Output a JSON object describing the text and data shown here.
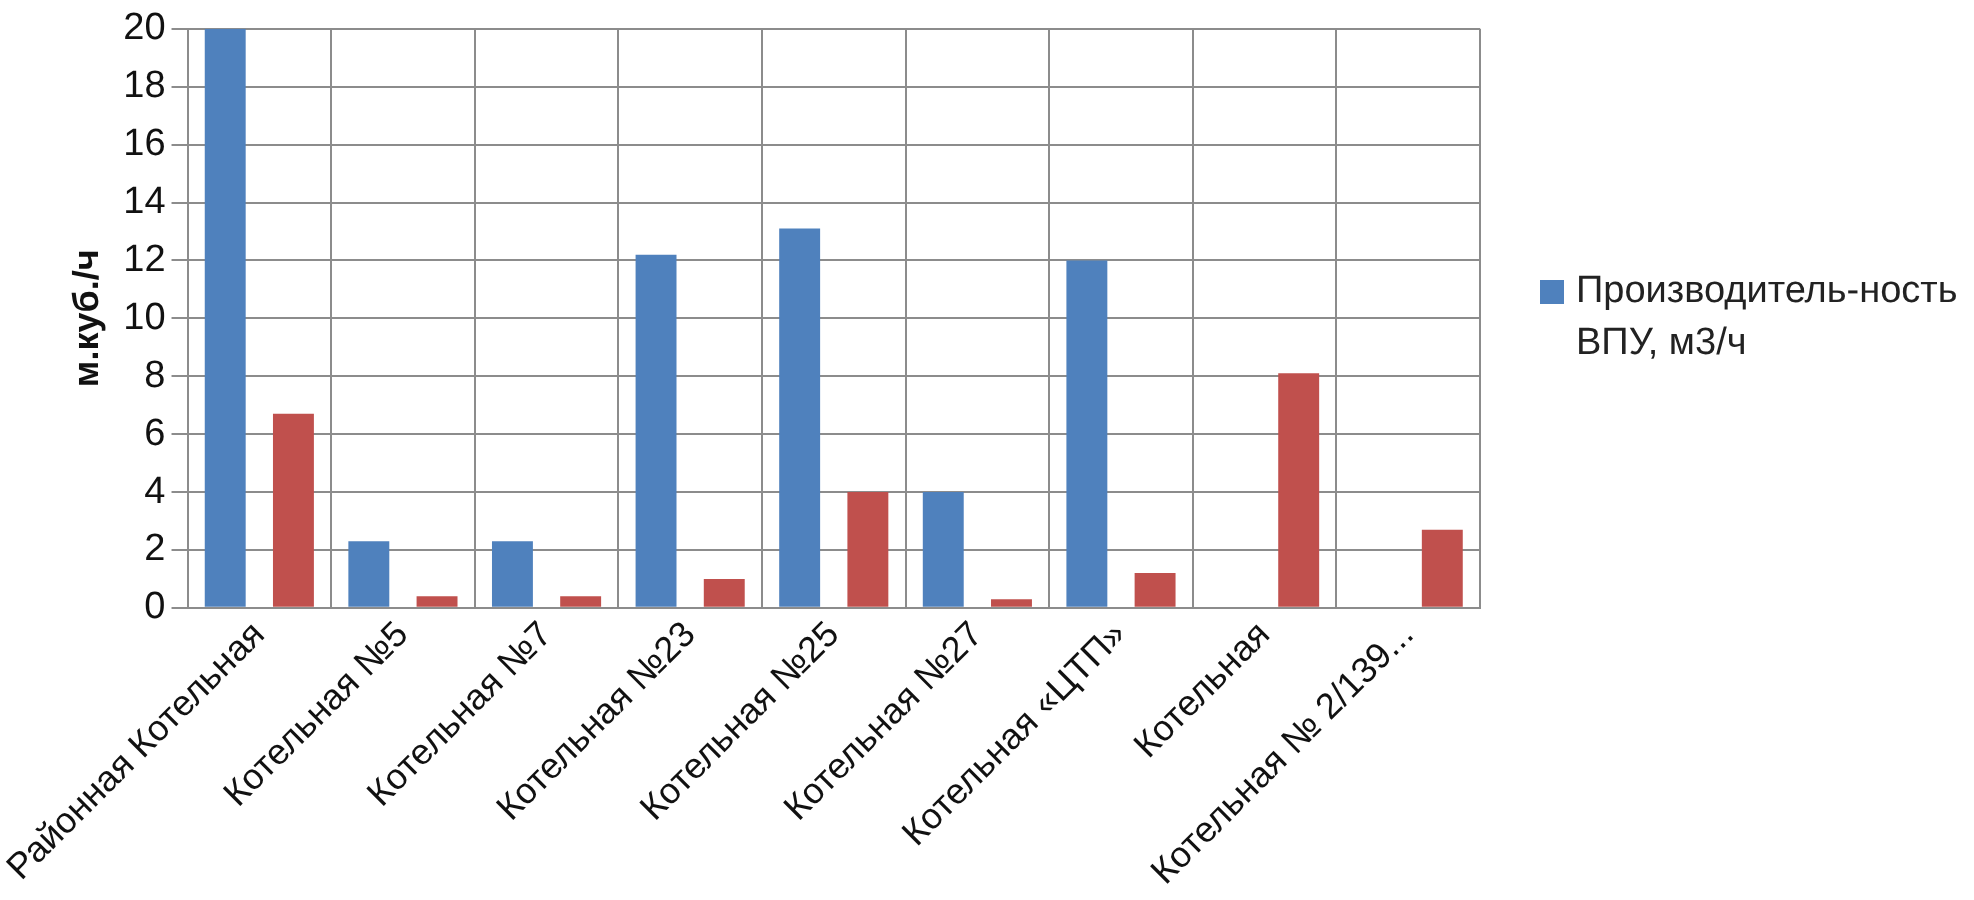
{
  "chart_data": {
    "type": "bar",
    "ylabel": "м.куб./ч",
    "categories": [
      "Районная Котельная",
      "Котельная №5",
      "Котельная №7",
      "Котельная №23",
      "Котельная №25",
      "Котельная №27",
      "Котельная «ЦТП»",
      "Котельная",
      "Котельная № 2/139..."
    ],
    "series": [
      {
        "name": "Производитель-ность ВПУ, м3/ч",
        "color": "#4f81bd",
        "values": [
          20,
          2.3,
          2.3,
          12.2,
          13.1,
          4,
          12,
          null,
          null
        ]
      },
      {
        "color": "#c0504d",
        "values": [
          6.7,
          0.4,
          0.4,
          1.0,
          4.0,
          0.3,
          1.2,
          8.1,
          2.7
        ]
      }
    ],
    "ylim": [
      0,
      20
    ],
    "yticks": [
      0,
      2,
      4,
      6,
      8,
      10,
      12,
      14,
      16,
      18,
      20
    ],
    "grid": true,
    "legend": "right"
  }
}
